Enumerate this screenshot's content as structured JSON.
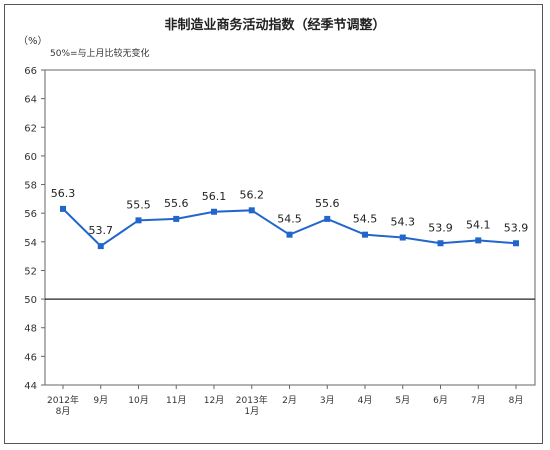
{
  "chart_data": {
    "type": "line",
    "title": "非制造业商务活动指数（经季节调整）",
    "unit": "（%）",
    "note": "50%=与上月比较无变化",
    "categories": [
      [
        "2012年",
        "8月"
      ],
      [
        "9月"
      ],
      [
        "10月"
      ],
      [
        "11月"
      ],
      [
        "12月"
      ],
      [
        "2013年",
        "1月"
      ],
      [
        "2月"
      ],
      [
        "3月"
      ],
      [
        "4月"
      ],
      [
        "5月"
      ],
      [
        "6月"
      ],
      [
        "7月"
      ],
      [
        "8月"
      ]
    ],
    "series": [
      {
        "values": [
          56.3,
          53.7,
          55.5,
          55.6,
          56.1,
          56.2,
          54.5,
          55.6,
          54.5,
          54.3,
          53.9,
          54.1,
          53.9
        ],
        "labels": [
          "56.3",
          "53.7",
          "55.5",
          "55.6",
          "56.1",
          "56.2",
          "54.5",
          "55.6",
          "54.5",
          "54.3",
          "53.9",
          "54.1",
          "53.9"
        ],
        "color": "#2266cc"
      }
    ],
    "ylim": [
      44,
      66
    ],
    "yticks": [
      "44",
      "46",
      "48",
      "50",
      "52",
      "54",
      "56",
      "58",
      "60",
      "62",
      "64",
      "66"
    ],
    "reference_line": 50,
    "grid": false,
    "legend": "none"
  }
}
